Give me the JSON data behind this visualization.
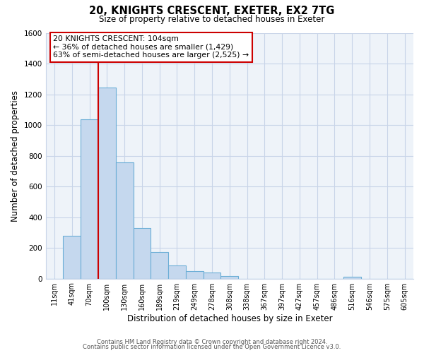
{
  "title": "20, KNIGHTS CRESCENT, EXETER, EX2 7TG",
  "subtitle": "Size of property relative to detached houses in Exeter",
  "xlabel": "Distribution of detached houses by size in Exeter",
  "ylabel": "Number of detached properties",
  "bar_labels": [
    "11sqm",
    "41sqm",
    "70sqm",
    "100sqm",
    "130sqm",
    "160sqm",
    "189sqm",
    "219sqm",
    "249sqm",
    "278sqm",
    "308sqm",
    "338sqm",
    "367sqm",
    "397sqm",
    "427sqm",
    "457sqm",
    "486sqm",
    "516sqm",
    "546sqm",
    "575sqm",
    "605sqm"
  ],
  "bar_values": [
    0,
    280,
    1035,
    1245,
    755,
    330,
    175,
    85,
    50,
    38,
    18,
    0,
    0,
    0,
    0,
    0,
    0,
    10,
    0,
    0,
    0
  ],
  "bar_color": "#c5d8ee",
  "bar_edge_color": "#6baed6",
  "plot_bg_color": "#eef3f9",
  "ylim": [
    0,
    1600
  ],
  "yticks": [
    0,
    200,
    400,
    600,
    800,
    1000,
    1200,
    1400,
    1600
  ],
  "property_label": "20 KNIGHTS CRESCENT: 104sqm",
  "annotation_line1": "← 36% of detached houses are smaller (1,429)",
  "annotation_line2": "63% of semi-detached houses are larger (2,525) →",
  "vline_color": "#cc0000",
  "vline_x": 2.5,
  "footer1": "Contains HM Land Registry data © Crown copyright and database right 2024.",
  "footer2": "Contains public sector information licensed under the Open Government Licence v3.0.",
  "background_color": "#ffffff",
  "grid_color": "#c8d4e8"
}
